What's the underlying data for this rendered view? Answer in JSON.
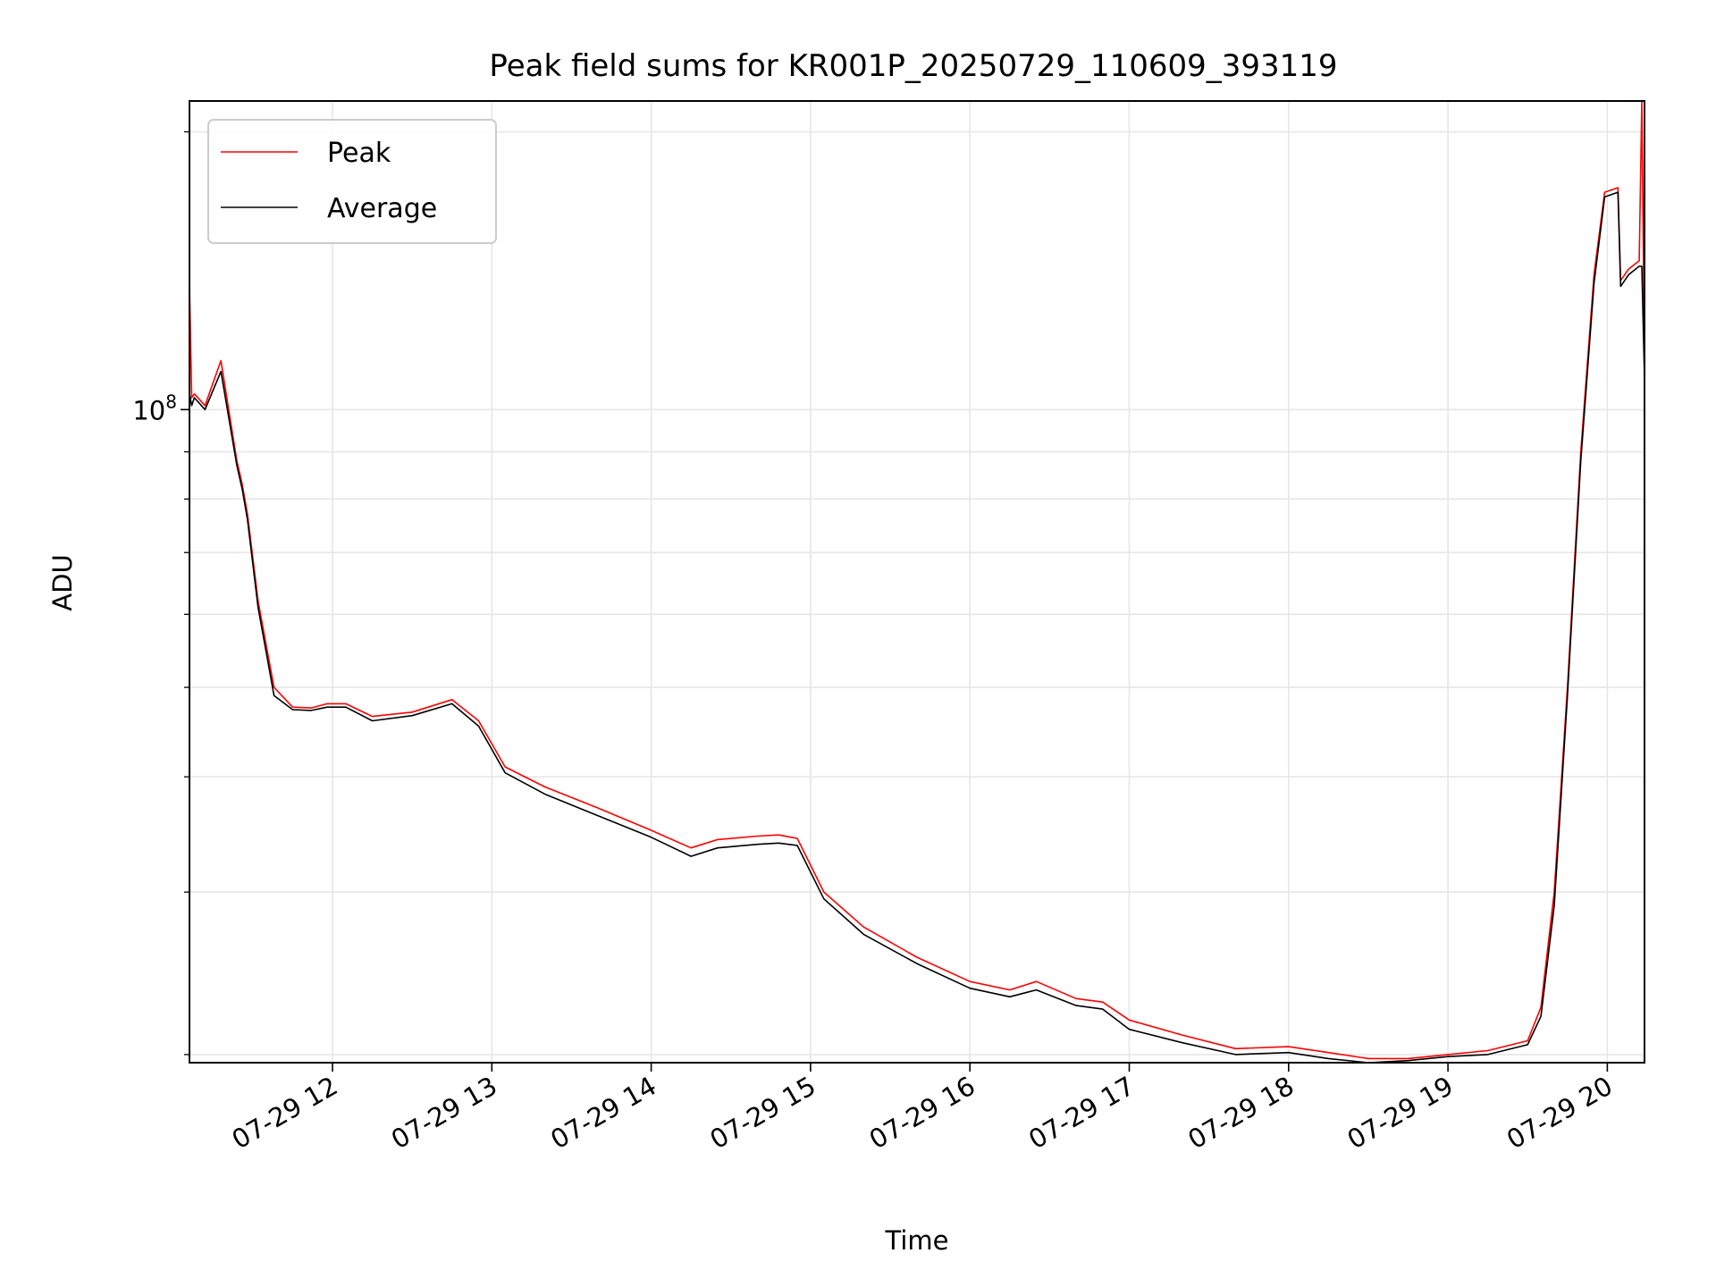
{
  "chart_data": {
    "type": "line",
    "title": "Peak field sums for KR001P_20250729_110609_393119",
    "xlabel": "Time",
    "ylabel": "ADU",
    "yscale": "log",
    "xlim": [
      "2025-07-29 11:06:09",
      "2025-07-29 20:14:00"
    ],
    "ylim": [
      19600000,
      216000000
    ],
    "x_tick_labels": [
      "07-29 12",
      "07-29 13",
      "07-29 14",
      "07-29 15",
      "07-29 16",
      "07-29 17",
      "07-29 18",
      "07-29 19",
      "07-29 20"
    ],
    "x_ticks": [
      "2025-07-29 12:00",
      "2025-07-29 13:00",
      "2025-07-29 14:00",
      "2025-07-29 15:00",
      "2025-07-29 16:00",
      "2025-07-29 17:00",
      "2025-07-29 18:00",
      "2025-07-29 19:00",
      "2025-07-29 20:00"
    ],
    "y_major_ticks": [
      {
        "value": 100000000,
        "label_base": "10",
        "label_exp": "8"
      }
    ],
    "y_minor_ticks": [
      20000000,
      30000000,
      40000000,
      50000000,
      60000000,
      70000000,
      80000000,
      90000000,
      200000000
    ],
    "grid": true,
    "legend_position": "top-left",
    "series": [
      {
        "name": "Peak",
        "color": "#ff0000",
        "x": [
          "2025-07-29 11:06:09",
          "2025-07-29 11:07",
          "2025-07-29 11:08",
          "2025-07-29 11:12",
          "2025-07-29 11:18",
          "2025-07-29 11:24",
          "2025-07-29 11:26",
          "2025-07-29 11:28",
          "2025-07-29 11:32",
          "2025-07-29 11:38",
          "2025-07-29 11:45",
          "2025-07-29 11:52",
          "2025-07-29 11:58",
          "2025-07-29 12:05",
          "2025-07-29 12:15",
          "2025-07-29 12:30",
          "2025-07-29 12:45",
          "2025-07-29 12:55",
          "2025-07-29 13:05",
          "2025-07-29 13:20",
          "2025-07-29 13:40",
          "2025-07-29 14:00",
          "2025-07-29 14:15",
          "2025-07-29 14:25",
          "2025-07-29 14:40",
          "2025-07-29 14:48",
          "2025-07-29 14:55",
          "2025-07-29 15:05",
          "2025-07-29 15:20",
          "2025-07-29 15:40",
          "2025-07-29 16:00",
          "2025-07-29 16:15",
          "2025-07-29 16:25",
          "2025-07-29 16:40",
          "2025-07-29 16:50",
          "2025-07-29 17:00",
          "2025-07-29 17:20",
          "2025-07-29 17:40",
          "2025-07-29 18:00",
          "2025-07-29 18:15",
          "2025-07-29 18:30",
          "2025-07-29 18:45",
          "2025-07-29 19:00",
          "2025-07-29 19:15",
          "2025-07-29 19:30",
          "2025-07-29 19:35",
          "2025-07-29 19:40",
          "2025-07-29 19:45",
          "2025-07-29 19:50",
          "2025-07-29 19:55",
          "2025-07-29 19:59",
          "2025-07-29 20:04",
          "2025-07-29 20:05",
          "2025-07-29 20:08",
          "2025-07-29 20:12",
          "2025-07-29 20:13",
          "2025-07-29 20:14"
        ],
        "y": [
          137000000,
          103000000,
          104000000,
          101000000,
          113000000,
          88000000,
          83000000,
          77000000,
          62000000,
          50000000,
          47600000,
          47500000,
          48000000,
          48000000,
          46500000,
          47000000,
          48500000,
          46000000,
          41000000,
          39000000,
          37000000,
          35000000,
          33500000,
          34200000,
          34500000,
          34600000,
          34300000,
          30000000,
          27500000,
          25500000,
          24000000,
          23500000,
          24000000,
          23000000,
          22800000,
          21800000,
          21000000,
          20300000,
          20400000,
          20100000,
          19800000,
          19800000,
          20000000,
          20200000,
          20700000,
          22500000,
          30000000,
          50000000,
          90000000,
          140000000,
          172000000,
          174000000,
          138000000,
          142000000,
          145000000,
          216000000,
          110000000
        ]
      },
      {
        "name": "Average",
        "color": "#000000",
        "x": [
          "2025-07-29 11:06:09",
          "2025-07-29 11:07",
          "2025-07-29 11:08",
          "2025-07-29 11:12",
          "2025-07-29 11:18",
          "2025-07-29 11:24",
          "2025-07-29 11:26",
          "2025-07-29 11:28",
          "2025-07-29 11:32",
          "2025-07-29 11:38",
          "2025-07-29 11:45",
          "2025-07-29 11:52",
          "2025-07-29 11:58",
          "2025-07-29 12:05",
          "2025-07-29 12:15",
          "2025-07-29 12:30",
          "2025-07-29 12:45",
          "2025-07-29 12:55",
          "2025-07-29 13:05",
          "2025-07-29 13:20",
          "2025-07-29 13:40",
          "2025-07-29 14:00",
          "2025-07-29 14:15",
          "2025-07-29 14:25",
          "2025-07-29 14:40",
          "2025-07-29 14:48",
          "2025-07-29 14:55",
          "2025-07-29 15:05",
          "2025-07-29 15:20",
          "2025-07-29 15:40",
          "2025-07-29 16:00",
          "2025-07-29 16:15",
          "2025-07-29 16:25",
          "2025-07-29 16:40",
          "2025-07-29 16:50",
          "2025-07-29 17:00",
          "2025-07-29 17:20",
          "2025-07-29 17:40",
          "2025-07-29 18:00",
          "2025-07-29 18:15",
          "2025-07-29 18:30",
          "2025-07-29 18:45",
          "2025-07-29 19:00",
          "2025-07-29 19:15",
          "2025-07-29 19:30",
          "2025-07-29 19:35",
          "2025-07-29 19:40",
          "2025-07-29 19:45",
          "2025-07-29 19:50",
          "2025-07-29 19:55",
          "2025-07-29 19:59",
          "2025-07-29 20:04",
          "2025-07-29 20:05",
          "2025-07-29 20:08",
          "2025-07-29 20:12",
          "2025-07-29 20:13",
          "2025-07-29 20:14"
        ],
        "y": [
          104000000,
          101000000,
          103000000,
          100000000,
          110000000,
          87000000,
          82000000,
          76000000,
          61000000,
          49000000,
          47300000,
          47200000,
          47600000,
          47600000,
          46000000,
          46600000,
          48000000,
          45400000,
          40400000,
          38300000,
          36300000,
          34400000,
          32800000,
          33500000,
          33800000,
          33900000,
          33700000,
          29500000,
          27000000,
          25100000,
          23600000,
          23100000,
          23500000,
          22600000,
          22400000,
          21300000,
          20600000,
          20000000,
          20100000,
          19800000,
          19600000,
          19700000,
          19900000,
          20000000,
          20500000,
          22000000,
          29000000,
          49000000,
          88000000,
          137000000,
          170000000,
          172000000,
          136000000,
          140000000,
          143000000,
          143000000,
          108000000
        ]
      }
    ]
  }
}
